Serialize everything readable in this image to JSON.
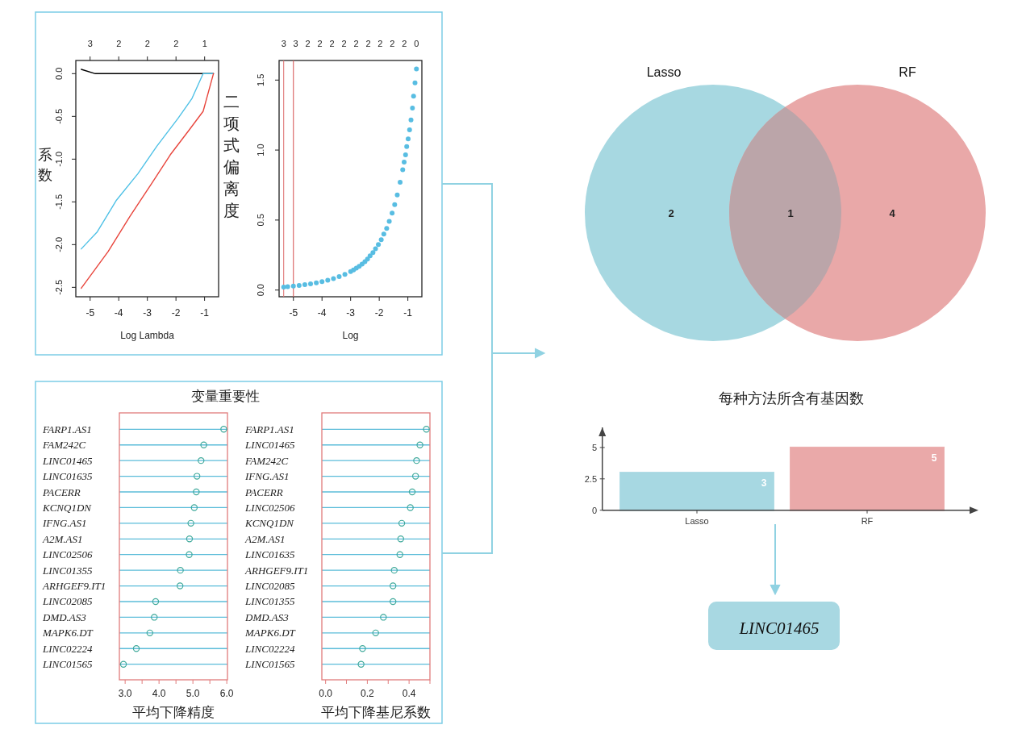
{
  "chart_data": [
    {
      "type": "line",
      "xlabel": "Log Lambda",
      "ylabel": "系数",
      "xlim": [
        -5.5,
        -0.51
      ],
      "ylim": [
        -2.61,
        0.154
      ],
      "xticks": [
        -5,
        -4,
        -3,
        -2,
        -1
      ],
      "yticks": [
        {
          "value": 0,
          "label": "0.0"
        },
        -0.5,
        {
          "value": -1,
          "label": "-1.0"
        },
        -1.5,
        {
          "value": -2,
          "label": "-2.0"
        },
        -2.5
      ],
      "annotations": [
        "3",
        "2",
        "2",
        "2",
        "1"
      ],
      "series": [
        {
          "color": "#000000",
          "x": [
            -5.31,
            -4.82,
            -0.69
          ],
          "values": [
            0.05,
            0,
            0
          ]
        },
        {
          "color": "#4fc1e6",
          "x": [
            -5.31,
            -4.75,
            -4.08,
            -3.33,
            -2.67,
            -1.92,
            -1.44,
            -1.05,
            -0.69
          ],
          "values": [
            -2.05,
            -1.85,
            -1.48,
            -1.17,
            -0.85,
            -0.52,
            -0.29,
            0,
            0
          ]
        },
        {
          "color": "#e8453c",
          "x": [
            -5.31,
            -4.37,
            -3.61,
            -2.86,
            -2.2,
            -1.54,
            -1.05,
            -0.69
          ],
          "values": [
            -2.51,
            -2.08,
            -1.67,
            -1.29,
            -0.95,
            -0.66,
            -0.44,
            0
          ]
        }
      ]
    },
    {
      "type": "scatter",
      "xlabel": "Log",
      "ylabel": "二项式偏离度",
      "xlim": [
        -5.5,
        -0.51
      ],
      "ylim": [
        -0.048,
        1.64
      ],
      "xticks": [
        -5,
        -4,
        -3,
        -2,
        -1
      ],
      "yticks": [
        {
          "value": 0,
          "label": "0.0"
        },
        0.5,
        {
          "value": 1,
          "label": "1.0"
        },
        1.5
      ],
      "annotations": [
        "3",
        "3",
        "2",
        "2",
        "2",
        "2",
        "2",
        "2",
        "2",
        "2",
        "2",
        "0"
      ],
      "marker": "circle",
      "ref_lines": [
        {
          "axis": "x",
          "value": -5.34,
          "color": "#e07a7a"
        },
        {
          "axis": "x",
          "value": -5.0,
          "color": "#d9605f"
        }
      ],
      "series": [
        {
          "color": "#58bde2",
          "x": [
            -5.34,
            -5.2,
            -5.0,
            -4.8,
            -4.6,
            -4.4,
            -4.2,
            -4.0,
            -3.8,
            -3.6,
            -3.4,
            -3.2,
            -3.0,
            -2.9,
            -2.8,
            -2.7,
            -2.6,
            -2.5,
            -2.41,
            -2.32,
            -2.22,
            -2.13,
            -2.03,
            -1.93,
            -1.84,
            -1.74,
            -1.65,
            -1.55,
            -1.46,
            -1.37,
            -1.27,
            -1.18,
            -1.13,
            -1.08,
            -1.04,
            -0.99,
            -0.94,
            -0.89,
            -0.84,
            -0.8,
            -0.75,
            -0.7
          ],
          "values": [
            0.021,
            0.024,
            0.028,
            0.033,
            0.038,
            0.044,
            0.051,
            0.06,
            0.07,
            0.082,
            0.096,
            0.112,
            0.132,
            0.143,
            0.156,
            0.17,
            0.186,
            0.203,
            0.222,
            0.244,
            0.268,
            0.295,
            0.325,
            0.36,
            0.4,
            0.44,
            0.49,
            0.55,
            0.61,
            0.68,
            0.77,
            0.86,
            0.914,
            0.966,
            1.025,
            1.08,
            1.145,
            1.215,
            1.3,
            1.385,
            1.48,
            1.58
          ]
        }
      ]
    },
    {
      "type": "scatter",
      "orientation": "horizontal",
      "title": "变量重要性",
      "xlabel": "平均下降精度",
      "categories": [
        "FARP1.AS1",
        "FAM242C",
        "LINC01465",
        "LINC01635",
        "PACERR",
        "KCNQ1DN",
        "IFNG.AS1",
        "A2M.AS1",
        "LINC02506",
        "LINC01355",
        "ARHGEF9.IT1",
        "LINC02085",
        "DMD.AS3",
        "MAPK6.DT",
        "LINC02224",
        "LINC01565"
      ],
      "xlim": [
        2.83,
        6.02
      ],
      "xticks": [
        {
          "value": 3,
          "label": "3.0"
        },
        {
          "value": 3.5,
          "label": null
        },
        {
          "value": 4,
          "label": "4.0"
        },
        {
          "value": 4.5,
          "label": null
        },
        {
          "value": 5,
          "label": "5.0"
        },
        {
          "value": 5.5,
          "label": null
        },
        {
          "value": 6,
          "label": "6.0"
        }
      ],
      "grid": "y",
      "marker": "circle",
      "series": [
        {
          "color": "#3fa99b",
          "values": [
            5.91,
            5.32,
            5.24,
            5.12,
            5.1,
            5.04,
            4.94,
            4.9,
            4.89,
            4.63,
            4.62,
            3.9,
            3.86,
            3.73,
            3.33,
            2.95
          ]
        }
      ]
    },
    {
      "type": "scatter",
      "orientation": "horizontal",
      "xlabel": "平均下降基尼系数",
      "categories": [
        "FARP1.AS1",
        "LINC01465",
        "FAM242C",
        "IFNG.AS1",
        "PACERR",
        "LINC02506",
        "KCNQ1DN",
        "A2M.AS1",
        "LINC01635",
        "ARHGEF9.IT1",
        "LINC02085",
        "LINC01355",
        "DMD.AS3",
        "MAPK6.DT",
        "LINC02224",
        "LINC01565"
      ],
      "xlim": [
        -0.018,
        0.5
      ],
      "xticks": [
        {
          "value": 0,
          "label": "0.0"
        },
        {
          "value": 0.1,
          "label": null
        },
        0.2,
        {
          "value": 0.3,
          "label": null
        },
        0.4,
        {
          "value": 0.5,
          "label": null
        }
      ],
      "grid": "y",
      "marker": "circle",
      "series": [
        {
          "color": "#3fa99b",
          "values": [
            0.483,
            0.452,
            0.436,
            0.431,
            0.415,
            0.406,
            0.365,
            0.36,
            0.356,
            0.329,
            0.323,
            0.323,
            0.277,
            0.24,
            0.177,
            0.17
          ]
        }
      ]
    },
    {
      "type": "other",
      "categories": [
        "Lasso",
        null,
        "RF"
      ],
      "values": [
        2,
        1,
        4
      ],
      "data_labels": true,
      "colors": [
        "#a7d8e1",
        "#bba5a9",
        "#e9a8a8"
      ]
    },
    {
      "type": "bar",
      "title": "每种方法所含有基因数",
      "categories": [
        "Lasso",
        "RF"
      ],
      "values": [
        3,
        5
      ],
      "colors": [
        "#a7d8e2",
        "#eaa9a9"
      ],
      "ylim": [
        0,
        6.6
      ],
      "yticks": [
        0,
        2.5,
        5
      ],
      "data_labels": true,
      "annotations": [
        "LINC01465"
      ]
    }
  ]
}
